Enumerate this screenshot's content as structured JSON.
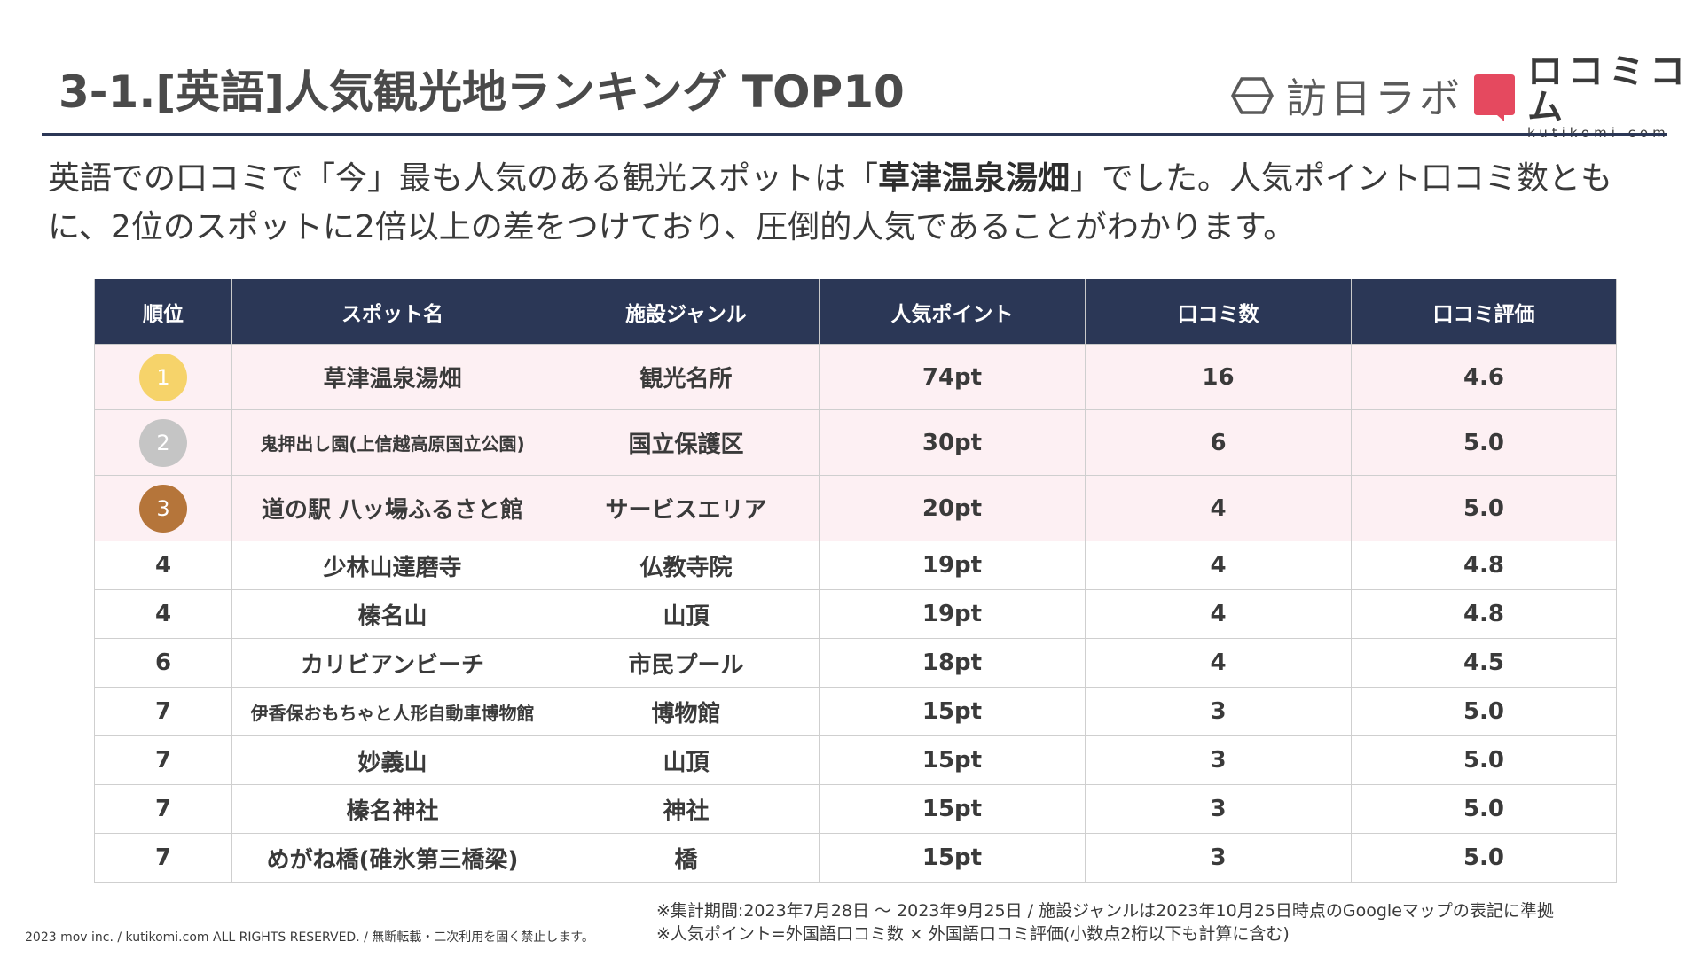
{
  "title": "3-1.[英語]人気観光地ランキング TOP10",
  "logos": {
    "hounichi": "訪日ラボ",
    "kutikomi_main": "ロコミコム",
    "kutikomi_sub": "kutikomi com",
    "kutikomi_color": "#e5495f"
  },
  "lead": {
    "part1": "英語での口コミで「今」最も人気のある観光スポットは「",
    "highlight": "草津温泉湯畑",
    "part2": "」でした。人気ポイント口コミ数ともに、2位のスポットに2倍以上の差をつけており、圧倒的人気であることがわかります。"
  },
  "table": {
    "headers": [
      "順位",
      "スポット名",
      "施設ジャンル",
      "人気ポイント",
      "口コミ数",
      "口コミ評価"
    ],
    "medal_colors": [
      "#f6d36a",
      "#c5c5c5",
      "#b5753a"
    ],
    "rows": [
      {
        "rank": "1",
        "name": "草津温泉湯畑",
        "genre": "観光名所",
        "points": "74pt",
        "count": "16",
        "rating": "4.6"
      },
      {
        "rank": "2",
        "name": "鬼押出し園(上信越高原国立公園)",
        "genre": "国立保護区",
        "points": "30pt",
        "count": "6",
        "rating": "5.0"
      },
      {
        "rank": "3",
        "name": "道の駅 八ッ場ふるさと館",
        "genre": "サービスエリア",
        "points": "20pt",
        "count": "4",
        "rating": "5.0"
      },
      {
        "rank": "4",
        "name": "少林山達磨寺",
        "genre": "仏教寺院",
        "points": "19pt",
        "count": "4",
        "rating": "4.8"
      },
      {
        "rank": "4",
        "name": "榛名山",
        "genre": "山頂",
        "points": "19pt",
        "count": "4",
        "rating": "4.8"
      },
      {
        "rank": "6",
        "name": "カリビアンビーチ",
        "genre": "市民プール",
        "points": "18pt",
        "count": "4",
        "rating": "4.5"
      },
      {
        "rank": "7",
        "name": "伊香保おもちゃと人形自動車博物館",
        "genre": "博物館",
        "points": "15pt",
        "count": "3",
        "rating": "5.0"
      },
      {
        "rank": "7",
        "name": "妙義山",
        "genre": "山頂",
        "points": "15pt",
        "count": "3",
        "rating": "5.0"
      },
      {
        "rank": "7",
        "name": "榛名神社",
        "genre": "神社",
        "points": "15pt",
        "count": "3",
        "rating": "5.0"
      },
      {
        "rank": "7",
        "name": "めがね橋(碓氷第三橋梁)",
        "genre": "橋",
        "points": "15pt",
        "count": "3",
        "rating": "5.0"
      }
    ]
  },
  "notes": {
    "line1": "※集計期間:2023年7月28日 〜 2023年9月25日 / 施設ジャンルは2023年10月25日時点のGoogleマップの表記に準拠",
    "line2": "※人気ポイント=外国語口コミ数 × 外国語口コミ評価(小数点2桁以下も計算に含む)"
  },
  "copyright": "2023 mov inc. / kutikomi.com ALL RIGHTS RESERVED. / 無断転載・二次利用を固く禁止します。"
}
